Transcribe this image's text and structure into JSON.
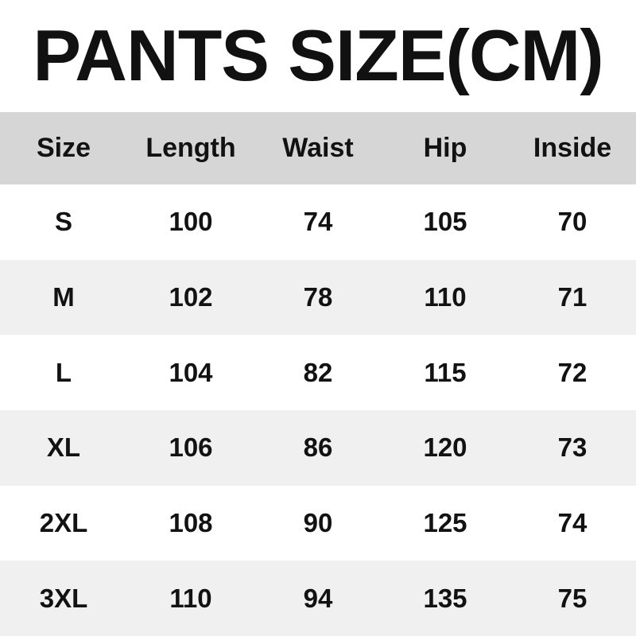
{
  "title": "PANTS SIZE(CM)",
  "chart_data": {
    "type": "table",
    "title": "PANTS SIZE(CM)",
    "columns": [
      "Size",
      "Length",
      "Waist",
      "Hip",
      "Inside"
    ],
    "rows": [
      [
        "S",
        "100",
        "74",
        "105",
        "70"
      ],
      [
        "M",
        "102",
        "78",
        "110",
        "71"
      ],
      [
        "L",
        "104",
        "82",
        "115",
        "72"
      ],
      [
        "XL",
        "106",
        "86",
        "120",
        "73"
      ],
      [
        "2XL",
        "108",
        "90",
        "125",
        "74"
      ],
      [
        "3XL",
        "110",
        "94",
        "135",
        "75"
      ]
    ],
    "layout": {
      "header_bg": "#d6d6d6",
      "alt_row_bg": "#f0f0f0",
      "row_bg": "#ffffff",
      "text_color": "#121212",
      "grid": "none",
      "column_alignment": "center"
    }
  }
}
